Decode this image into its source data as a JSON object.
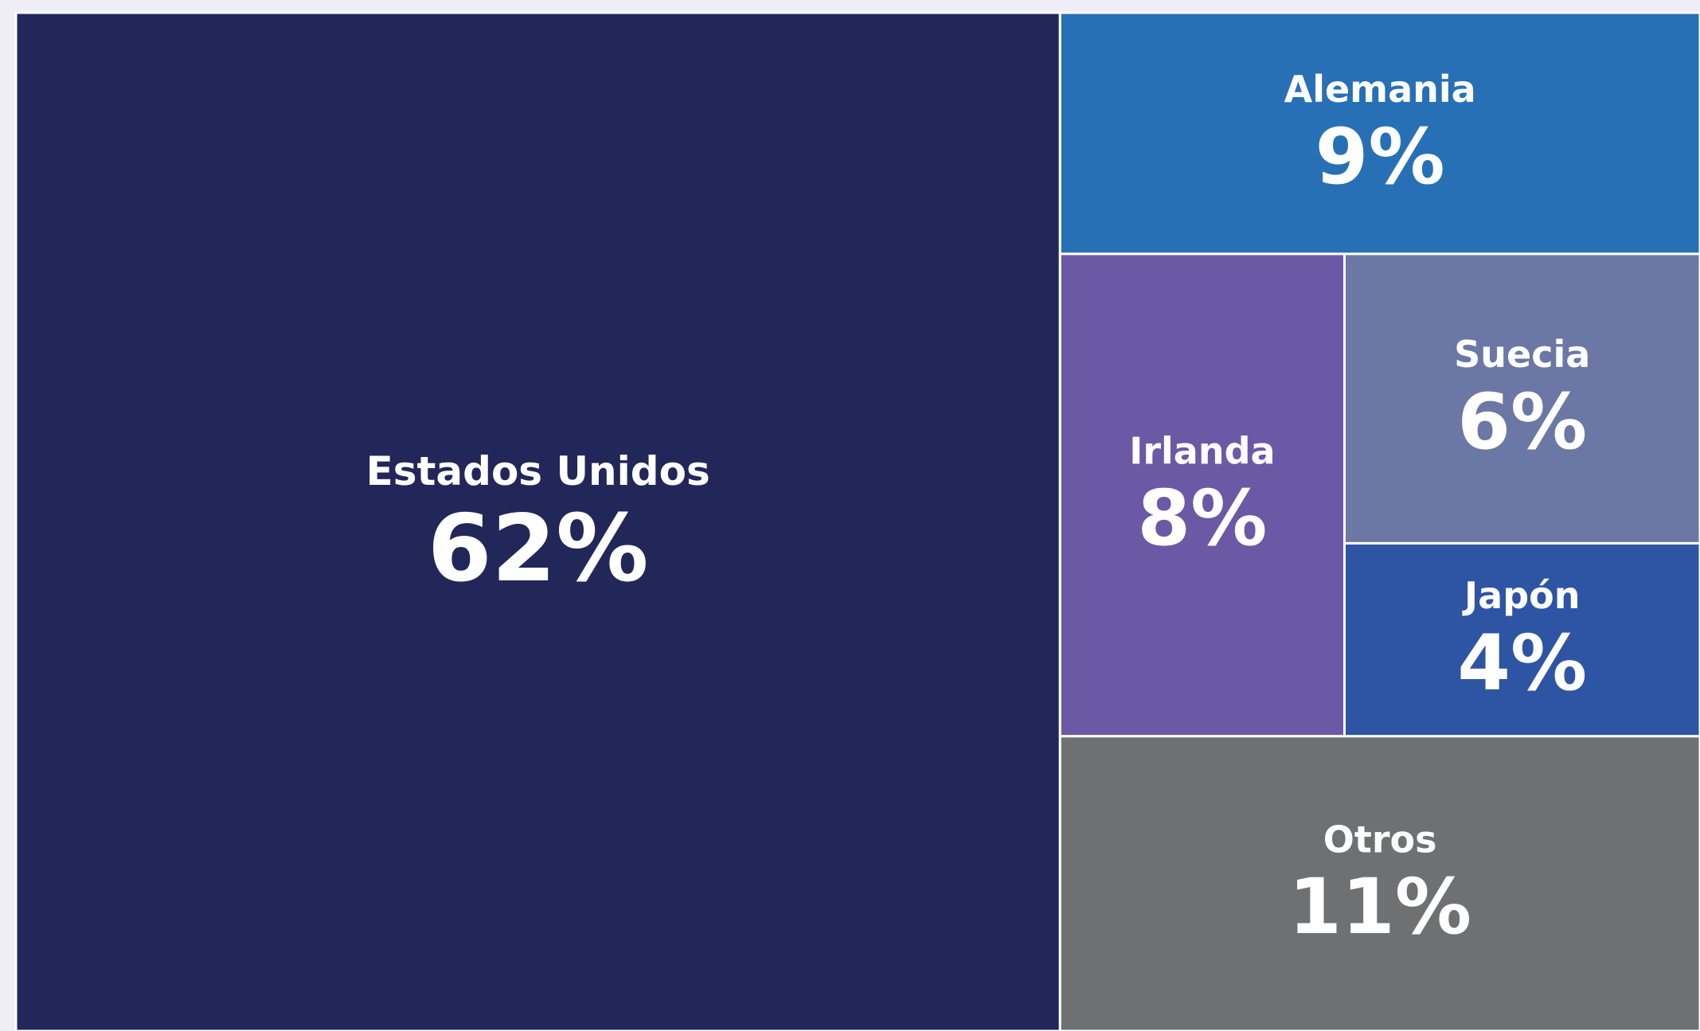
{
  "chart_data": {
    "type": "treemap",
    "categories": [
      "Estados Unidos",
      "Alemania",
      "Irlanda",
      "Suecia",
      "Japón",
      "Otros"
    ],
    "values": [
      62,
      9,
      8,
      6,
      4,
      11
    ],
    "value_labels": [
      "62%",
      "9%",
      "8%",
      "6%",
      "4%",
      "11%"
    ],
    "colors": [
      "#212759",
      "#2870b6",
      "#6b59a6",
      "#6b78a6",
      "#2e55a4",
      "#6f7072"
    ]
  }
}
